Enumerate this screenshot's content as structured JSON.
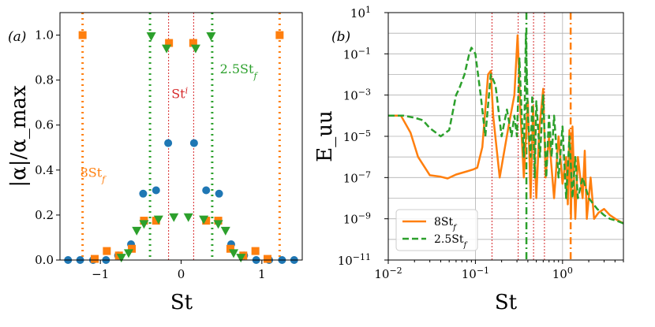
{
  "chart_data": [
    {
      "type": "scatter",
      "panel_label": "(a)",
      "xlabel": "St",
      "ylabel": "|α|/α_max",
      "xlim": [
        -1.5,
        1.5
      ],
      "ylim": [
        0,
        1.1
      ],
      "xticks": [
        -1,
        0,
        1
      ],
      "xtick_labels": [
        "−1",
        "0",
        "1"
      ],
      "yticks": [
        0.0,
        0.2,
        0.4,
        0.6,
        0.8,
        1.0
      ],
      "ytick_labels": [
        "0.0",
        "0.2",
        "0.4",
        "0.6",
        "0.8",
        "1.0"
      ],
      "grid": false,
      "series": [
        {
          "name": "St^i",
          "marker": "circle",
          "color": "#1f77b4",
          "x": [
            -1.4,
            -1.25,
            -1.09,
            -0.93,
            -0.78,
            -0.62,
            -0.47,
            -0.31,
            -0.16,
            0.16,
            0.31,
            0.47,
            0.62,
            0.78,
            0.93,
            1.09,
            1.25,
            1.4
          ],
          "y": [
            0,
            0,
            0,
            0,
            0.02,
            0.07,
            0.295,
            0.31,
            0.52,
            0.52,
            0.31,
            0.295,
            0.07,
            0.02,
            0,
            0,
            0,
            0
          ]
        },
        {
          "name": "8St_f",
          "marker": "square",
          "color": "#ff7f0e",
          "x": [
            -1.22,
            -1.07,
            -0.92,
            -0.77,
            -0.61,
            -0.46,
            -0.31,
            -0.15,
            0.15,
            0.31,
            0.46,
            0.61,
            0.77,
            0.92,
            1.07,
            1.22
          ],
          "y": [
            1.0,
            0.005,
            0.04,
            0.02,
            0.05,
            0.175,
            0.175,
            0.965,
            0.965,
            0.175,
            0.175,
            0.05,
            0.02,
            0.04,
            0.005,
            1.0
          ]
        },
        {
          "name": "2.5St_f",
          "marker": "triangle-down",
          "color": "#2ca02c",
          "x": [
            -0.74,
            -0.65,
            -0.55,
            -0.46,
            -0.37,
            -0.28,
            -0.18,
            -0.09,
            0.09,
            0.18,
            0.28,
            0.37,
            0.46,
            0.55,
            0.65,
            0.74
          ],
          "y": [
            0.01,
            0.03,
            0.13,
            0.16,
            0.995,
            0.18,
            0.94,
            0.19,
            0.19,
            0.94,
            0.18,
            0.995,
            0.16,
            0.13,
            0.03,
            0.01
          ]
        }
      ],
      "vlines": [
        {
          "x": -1.22,
          "color": "#ff7f0e",
          "style": "dotted-thick"
        },
        {
          "x": 1.22,
          "color": "#ff7f0e",
          "style": "dotted-thick"
        },
        {
          "x": -0.385,
          "color": "#2ca02c",
          "style": "dotted-thick"
        },
        {
          "x": 0.385,
          "color": "#2ca02c",
          "style": "dotted-thick"
        },
        {
          "x": -0.155,
          "color": "#d62728",
          "style": "dotted-thin"
        },
        {
          "x": 0.155,
          "color": "#d62728",
          "style": "dotted-thin"
        }
      ],
      "annotations": [
        {
          "text": "8St",
          "sub": "f",
          "color": "#ff7f0e",
          "x": -1.25,
          "y": 0.37
        },
        {
          "text": "2.5St",
          "sub": "f",
          "color": "#2ca02c",
          "x": 0.48,
          "y": 0.83
        },
        {
          "text": "St",
          "sup": "i",
          "color": "#d62728",
          "x": -0.12,
          "y": 0.72
        }
      ]
    },
    {
      "type": "line",
      "panel_label": "(b)",
      "xlabel": "St",
      "ylabel": "E_uu",
      "xscale": "log",
      "yscale": "log",
      "xlim": [
        0.01,
        5
      ],
      "ylim": [
        1e-11,
        10
      ],
      "xtick_labels": [
        "10",
        "10",
        "10"
      ],
      "xtick_exps": [
        "−2",
        "−1",
        "0"
      ],
      "ytick_labels": [
        "10",
        "10",
        "10",
        "10",
        "10",
        "10",
        "10"
      ],
      "ytick_exps": [
        "−11",
        "−9",
        "−7",
        "−5",
        "−3",
        "−1",
        "1"
      ],
      "grid": true,
      "legend": {
        "position": "lower-left",
        "entries": [
          {
            "label": "8St",
            "sub": "f",
            "color": "#ff7f0e",
            "style": "solid"
          },
          {
            "label": "2.5St",
            "sub": "f",
            "color": "#2ca02c",
            "style": "dashed"
          }
        ]
      },
      "series": [
        {
          "name": "8St_f",
          "color": "#ff7f0e",
          "style": "solid",
          "x": [
            0.01,
            0.014,
            0.018,
            0.022,
            0.03,
            0.04,
            0.048,
            0.06,
            0.08,
            0.095,
            0.105,
            0.12,
            0.14,
            0.15,
            0.16,
            0.19,
            0.24,
            0.28,
            0.305,
            0.33,
            0.36,
            0.4,
            0.43,
            0.46,
            0.5,
            0.54,
            0.6,
            0.64,
            0.7,
            0.8,
            0.9,
            1.0,
            1.1,
            1.15,
            1.2,
            1.25,
            1.3,
            1.4,
            1.5,
            1.7,
            1.8,
            1.9,
            2.1,
            2.3,
            2.6,
            3.0,
            3.5,
            4.2,
            5.0
          ],
          "y": [
            0.0001,
            0.0001,
            1.5e-05,
            1e-06,
            1.3e-07,
            1.1e-07,
            9e-08,
            1.4e-07,
            2e-07,
            2.5e-07,
            3e-07,
            3e-06,
            0.01,
            0.015,
            0.0001,
            1e-07,
            3e-05,
            0.001,
            0.8,
            0.0001,
            1e-07,
            0.0005,
            1e-08,
            0.0003,
            1e-08,
            2e-05,
            0.002,
            1e-07,
            1e-05,
            1e-08,
            1e-05,
            5e-08,
            1e-06,
            5e-09,
            2e-05,
            1e-09,
            3e-05,
            1e-09,
            1e-06,
            1e-08,
            2e-06,
            1e-09,
            1e-07,
            1e-09,
            2e-09,
            3e-09,
            1.5e-09,
            9e-10,
            6e-10
          ]
        },
        {
          "name": "2.5St_f",
          "color": "#2ca02c",
          "style": "dashed",
          "x": [
            0.01,
            0.015,
            0.02,
            0.025,
            0.03,
            0.04,
            0.05,
            0.06,
            0.065,
            0.075,
            0.085,
            0.09,
            0.1,
            0.115,
            0.13,
            0.15,
            0.17,
            0.2,
            0.23,
            0.26,
            0.28,
            0.3,
            0.32,
            0.34,
            0.36,
            0.38,
            0.4,
            0.43,
            0.45,
            0.48,
            0.5,
            0.55,
            0.6,
            0.65,
            0.7,
            0.75,
            0.8,
            0.9,
            1.0,
            1.1,
            1.2,
            1.3,
            1.4,
            1.5,
            1.7,
            2.0,
            2.5,
            3.0,
            3.5,
            4.2,
            5.0
          ],
          "y": [
            0.0001,
            0.0001,
            8e-05,
            6e-05,
            2.5e-05,
            1e-05,
            2e-05,
            0.001,
            0.002,
            0.01,
            0.1,
            0.2,
            0.1,
            0.001,
            1e-05,
            0.01,
            0.003,
            1e-05,
            0.0002,
            1e-05,
            0.0001,
            1e-05,
            0.06,
            0.0001,
            1e-06,
            1.0,
            0.0001,
            1e-06,
            0.001,
            1e-07,
            0.0005,
            1e-06,
            0.001,
            1e-07,
            0.0001,
            1e-06,
            0.0001,
            1e-07,
            3e-05,
            1e-08,
            1e-05,
            1e-08,
            1e-06,
            1e-08,
            1e-07,
            1e-08,
            3e-09,
            1.5e-09,
            1e-09,
            8e-10,
            6e-10
          ]
        }
      ],
      "vlines": [
        {
          "x": 0.155,
          "color": "#d62728",
          "style": "dotted-thin"
        },
        {
          "x": 0.31,
          "color": "#d62728",
          "style": "dotted-thin"
        },
        {
          "x": 0.465,
          "color": "#d62728",
          "style": "dotted-thin"
        },
        {
          "x": 0.62,
          "color": "#d62728",
          "style": "dotted-thin"
        },
        {
          "x": 0.385,
          "color": "#2ca02c",
          "style": "dash-dot"
        },
        {
          "x": 1.24,
          "color": "#ff7f0e",
          "style": "dash-dot"
        }
      ]
    }
  ]
}
